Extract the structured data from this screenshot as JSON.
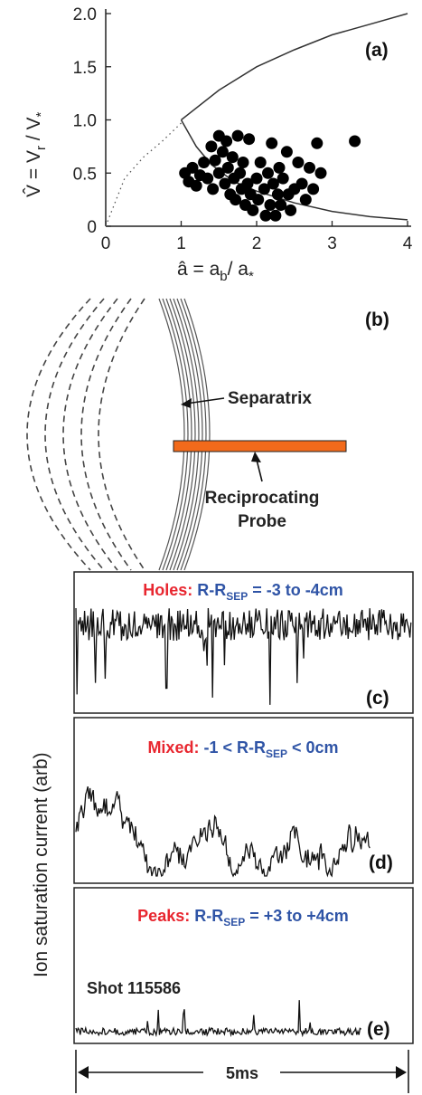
{
  "chart_data": [
    {
      "type": "scatter",
      "panel": "(a)",
      "xlim": [
        0,
        4
      ],
      "ylim": [
        0,
        2
      ],
      "xticks": [
        "0",
        "1",
        "2",
        "3",
        "4"
      ],
      "yticks": [
        "0",
        "0.5",
        "1.0",
        "1.5",
        "2.0"
      ],
      "xlabel": {
        "prefix": "â = a",
        "sub1": "b",
        "mid": "/ a",
        "sub2": "*"
      },
      "ylabel": {
        "prefix": "V̂ = V",
        "sub1": "r",
        "mid": " / V",
        "sub2": "*"
      },
      "points": [
        [
          1.05,
          0.5
        ],
        [
          1.1,
          0.42
        ],
        [
          1.15,
          0.55
        ],
        [
          1.2,
          0.38
        ],
        [
          1.25,
          0.48
        ],
        [
          1.3,
          0.6
        ],
        [
          1.35,
          0.45
        ],
        [
          1.4,
          0.75
        ],
        [
          1.42,
          0.35
        ],
        [
          1.45,
          0.62
        ],
        [
          1.5,
          0.85
        ],
        [
          1.5,
          0.5
        ],
        [
          1.55,
          0.7
        ],
        [
          1.58,
          0.4
        ],
        [
          1.6,
          0.8
        ],
        [
          1.62,
          0.55
        ],
        [
          1.65,
          0.3
        ],
        [
          1.68,
          0.65
        ],
        [
          1.7,
          0.45
        ],
        [
          1.72,
          0.25
        ],
        [
          1.75,
          0.85
        ],
        [
          1.78,
          0.5
        ],
        [
          1.8,
          0.35
        ],
        [
          1.82,
          0.6
        ],
        [
          1.85,
          0.2
        ],
        [
          1.88,
          0.4
        ],
        [
          1.9,
          0.82
        ],
        [
          1.92,
          0.3
        ],
        [
          1.95,
          0.15
        ],
        [
          2.0,
          0.45
        ],
        [
          2.02,
          0.25
        ],
        [
          2.05,
          0.6
        ],
        [
          2.1,
          0.35
        ],
        [
          2.12,
          0.1
        ],
        [
          2.15,
          0.5
        ],
        [
          2.18,
          0.2
        ],
        [
          2.2,
          0.78
        ],
        [
          2.22,
          0.4
        ],
        [
          2.25,
          0.1
        ],
        [
          2.28,
          0.3
        ],
        [
          2.3,
          0.55
        ],
        [
          2.32,
          0.2
        ],
        [
          2.35,
          0.45
        ],
        [
          2.4,
          0.7
        ],
        [
          2.42,
          0.3
        ],
        [
          2.45,
          0.15
        ],
        [
          2.5,
          0.35
        ],
        [
          2.55,
          0.6
        ],
        [
          2.6,
          0.4
        ],
        [
          2.65,
          0.25
        ],
        [
          2.7,
          0.55
        ],
        [
          2.75,
          0.35
        ],
        [
          2.8,
          0.78
        ],
        [
          2.85,
          0.5
        ],
        [
          3.3,
          0.8
        ]
      ],
      "upper_curve": [
        [
          1,
          1.0
        ],
        [
          1.5,
          1.28
        ],
        [
          2,
          1.5
        ],
        [
          2.5,
          1.66
        ],
        [
          3,
          1.8
        ],
        [
          3.5,
          1.9
        ],
        [
          4,
          2.0
        ]
      ],
      "dotted_curve": [
        [
          0,
          0.0
        ],
        [
          0.25,
          0.45
        ],
        [
          0.5,
          0.65
        ],
        [
          0.75,
          0.8
        ],
        [
          1,
          0.97
        ]
      ],
      "lower_curve": [
        [
          1,
          1.0
        ],
        [
          1.2,
          0.75
        ],
        [
          1.4,
          0.58
        ],
        [
          1.7,
          0.42
        ],
        [
          2,
          0.33
        ],
        [
          2.5,
          0.22
        ],
        [
          3,
          0.14
        ],
        [
          3.5,
          0.09
        ],
        [
          4,
          0.06
        ]
      ]
    },
    {
      "type": "line",
      "panel": "(c)",
      "title_red": "Holes:",
      "title_blue": "R-R",
      "title_sub": "SEP",
      "title_tail": " = -3 to -4cm"
    },
    {
      "type": "line",
      "panel": "(d)",
      "title_red": "Mixed:",
      "title_blue": "-1 < R-R",
      "title_sub": "SEP",
      "title_tail": " < 0cm"
    },
    {
      "type": "line",
      "panel": "(e)",
      "title_red": "Peaks:",
      "title_blue": "R-R",
      "title_sub": "SEP",
      "title_tail": " = +3 to +4cm",
      "note": "Shot 115586"
    }
  ],
  "panel_b": {
    "tag": "(b)",
    "separatrix_label": "Separatrix",
    "probe_label_line1": "Reciprocating",
    "probe_label_line2": "Probe",
    "probe_color": "#f26a1b"
  },
  "shared": {
    "ylabel": "Ion saturation current (arb)",
    "time_span_label": "5ms"
  }
}
